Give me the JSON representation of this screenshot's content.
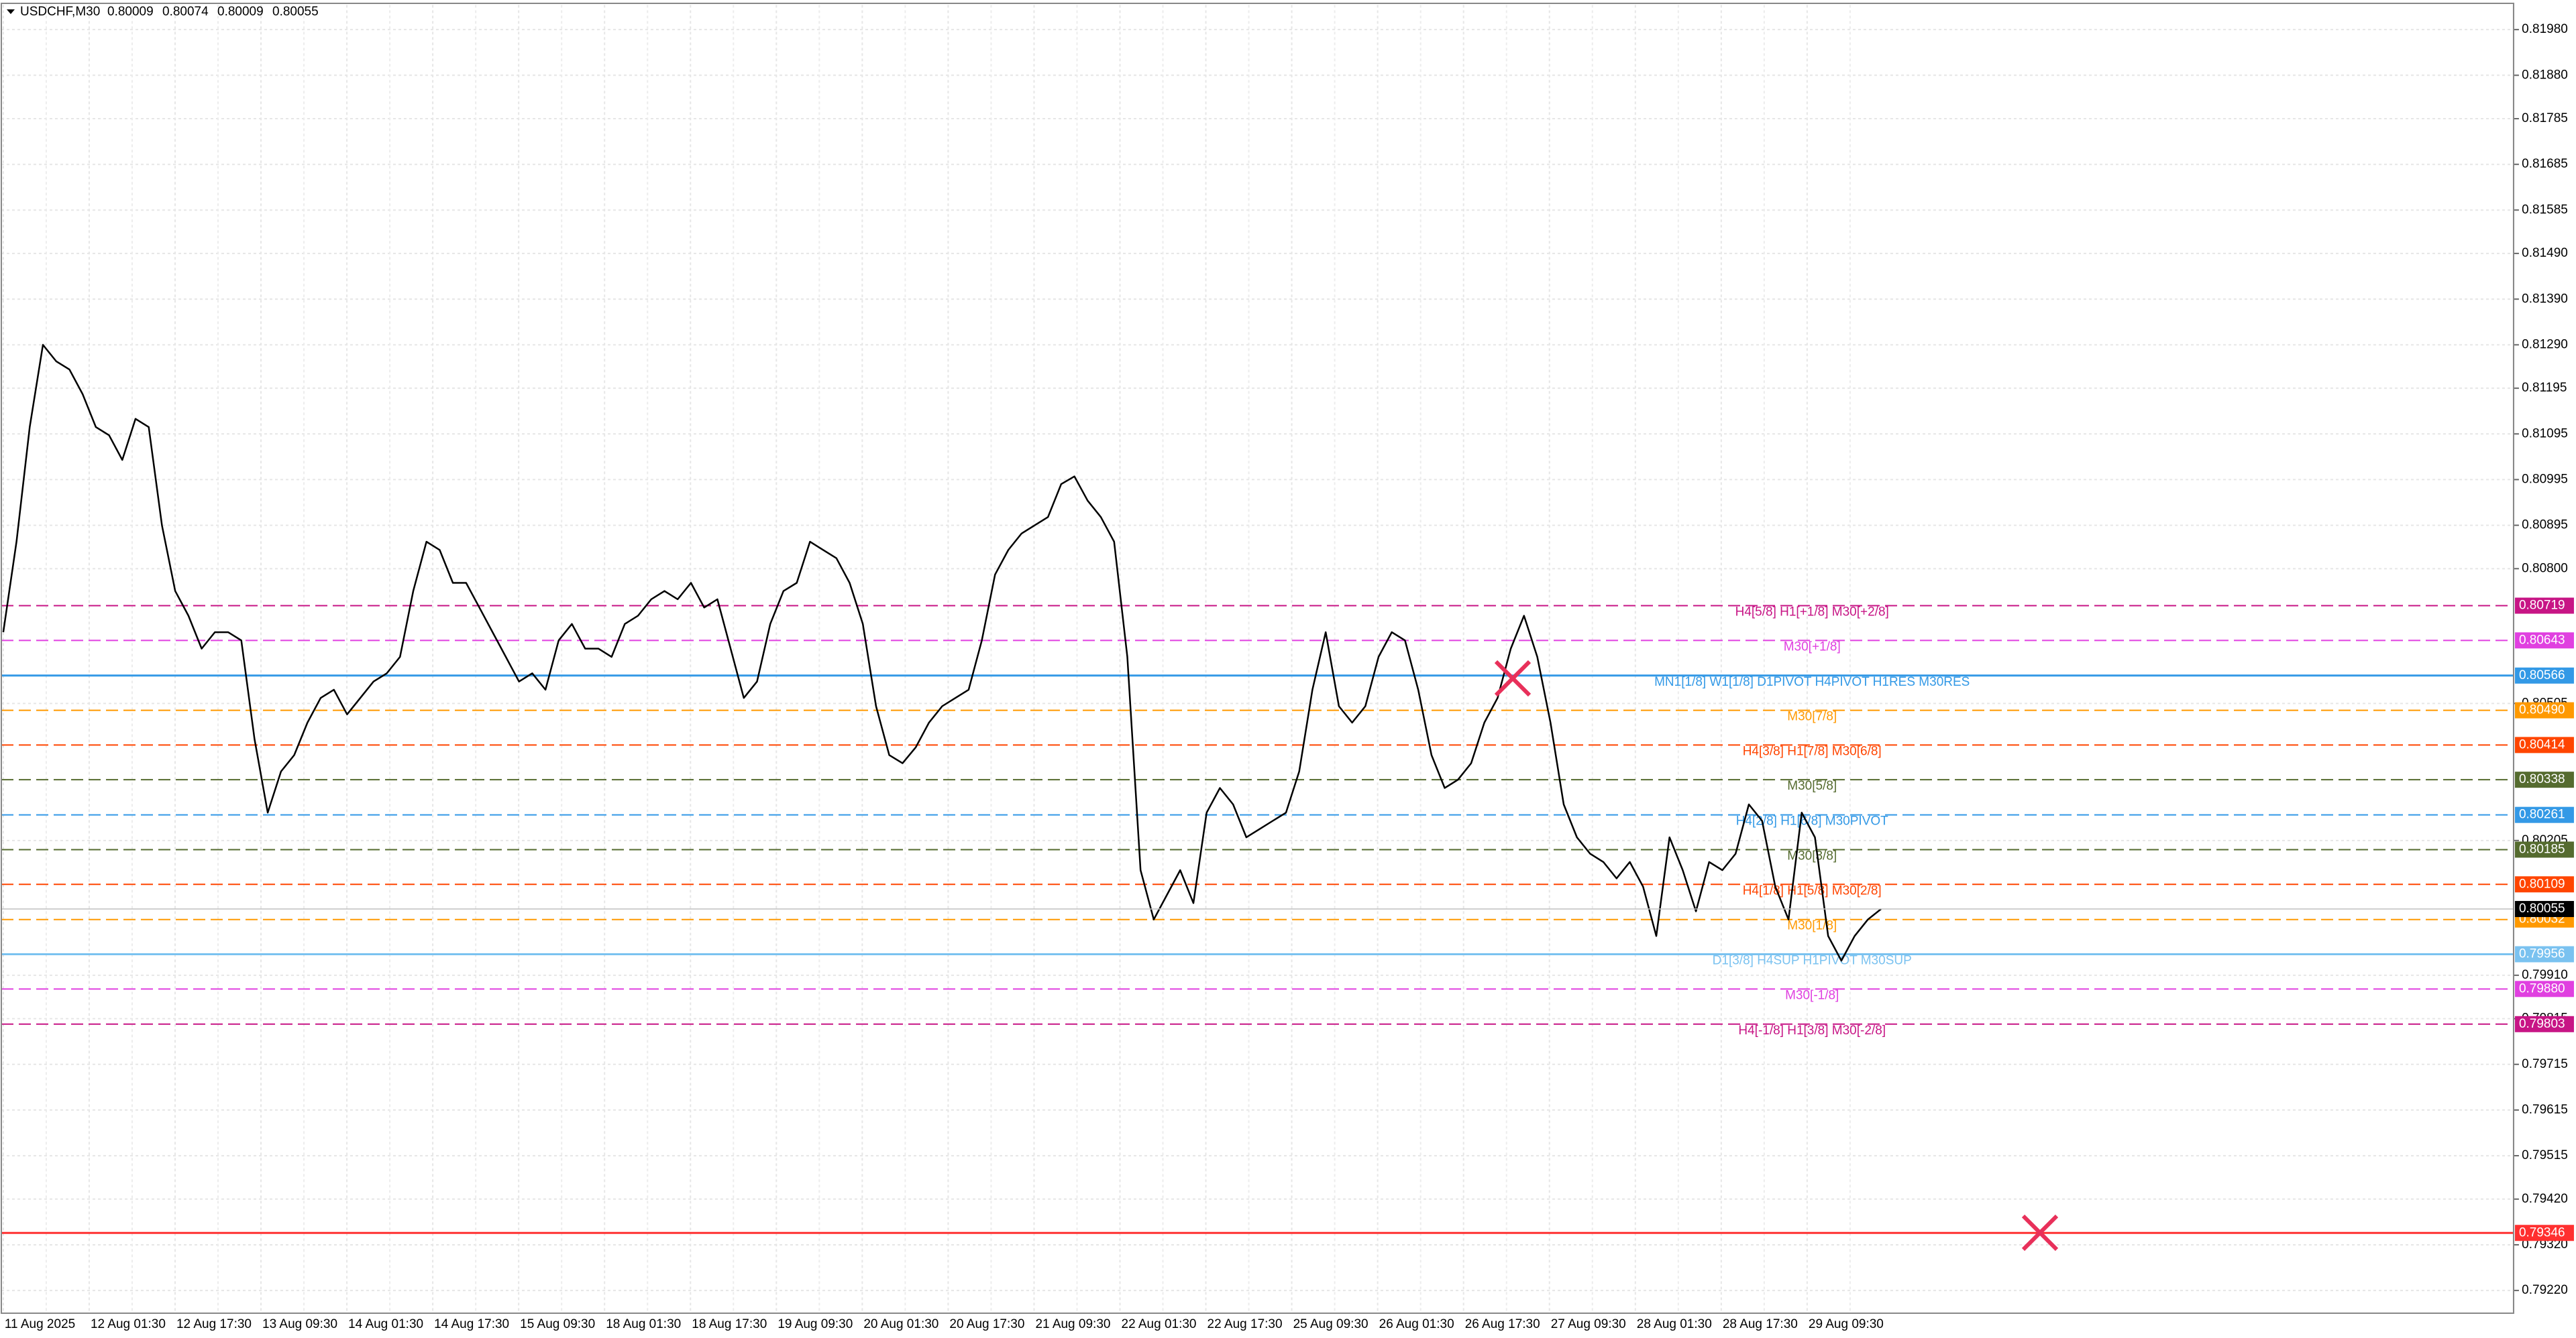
{
  "chart_data": {
    "type": "line",
    "symbol": "USDCHF,M30",
    "ohlc": [
      0.80009,
      0.80074,
      0.80009,
      0.80055
    ],
    "line_color": "#000000",
    "grid": true,
    "ylim": [
      0.7917,
      0.82034
    ],
    "yticks": [
      {
        "value": 0.8198,
        "label": "0.81980"
      },
      {
        "value": 0.8188,
        "label": "0.81880"
      },
      {
        "value": 0.81785,
        "label": "0.81785"
      },
      {
        "value": 0.81685,
        "label": "0.81685"
      },
      {
        "value": 0.81585,
        "label": "0.81585"
      },
      {
        "value": 0.8149,
        "label": "0.81490"
      },
      {
        "value": 0.8139,
        "label": "0.81390"
      },
      {
        "value": 0.8129,
        "label": "0.81290"
      },
      {
        "value": 0.81195,
        "label": "0.81195"
      },
      {
        "value": 0.81095,
        "label": "0.81095"
      },
      {
        "value": 0.80995,
        "label": "0.80995"
      },
      {
        "value": 0.80895,
        "label": "0.80895"
      },
      {
        "value": 0.808,
        "label": "0.80800"
      },
      {
        "value": 0.80505,
        "label": "0.80505"
      },
      {
        "value": 0.80205,
        "label": "0.80205"
      },
      {
        "value": 0.7991,
        "label": "0.79910"
      },
      {
        "value": 0.79815,
        "label": "0.79815"
      },
      {
        "value": 0.79715,
        "label": "0.79715"
      },
      {
        "value": 0.79615,
        "label": "0.79615"
      },
      {
        "value": 0.79515,
        "label": "0.79515"
      },
      {
        "value": 0.7942,
        "label": "0.79420"
      },
      {
        "value": 0.7932,
        "label": "0.79320"
      },
      {
        "value": 0.7922,
        "label": "0.79220"
      }
    ],
    "xtick_labels": [
      "11 Aug 2025",
      "12 Aug 01:30",
      "12 Aug 17:30",
      "13 Aug 09:30",
      "14 Aug 01:30",
      "14 Aug 17:30",
      "15 Aug 09:30",
      "18 Aug 01:30",
      "18 Aug 17:30",
      "19 Aug 09:30",
      "20 Aug 01:30",
      "20 Aug 17:30",
      "21 Aug 09:30",
      "22 Aug 01:30",
      "22 Aug 17:30",
      "25 Aug 09:30",
      "26 Aug 01:30",
      "26 Aug 17:30",
      "27 Aug 09:30",
      "28 Aug 01:30",
      "28 Aug 17:30",
      "29 Aug 09:30"
    ],
    "values": [
      0.80661,
      0.80859,
      0.8111,
      0.8129,
      0.81254,
      0.81236,
      0.81182,
      0.8111,
      0.81092,
      0.81038,
      0.81128,
      0.8111,
      0.80895,
      0.80751,
      0.80697,
      0.80625,
      0.80661,
      0.80661,
      0.80643,
      0.80427,
      0.80266,
      0.80356,
      0.80392,
      0.80463,
      0.80517,
      0.80535,
      0.80481,
      0.80517,
      0.80553,
      0.80571,
      0.80607,
      0.80751,
      0.80859,
      0.80841,
      0.80769,
      0.80769,
      0.80715,
      0.80661,
      0.80607,
      0.80553,
      0.80571,
      0.80535,
      0.80643,
      0.80679,
      0.80625,
      0.80625,
      0.80607,
      0.80679,
      0.80697,
      0.80733,
      0.80751,
      0.80733,
      0.80769,
      0.80715,
      0.80733,
      0.80625,
      0.80517,
      0.80553,
      0.80679,
      0.80751,
      0.80769,
      0.80859,
      0.80841,
      0.80823,
      0.80769,
      0.80679,
      0.80499,
      0.80392,
      0.80374,
      0.80409,
      0.80463,
      0.80499,
      0.80517,
      0.80535,
      0.80643,
      0.80787,
      0.80841,
      0.80877,
      0.80895,
      0.80913,
      0.80985,
      0.81002,
      0.80949,
      0.80913,
      0.80859,
      0.80607,
      0.8014,
      0.80032,
      0.80086,
      0.8014,
      0.80068,
      0.80266,
      0.8032,
      0.80284,
      0.80212,
      0.8023,
      0.80248,
      0.80266,
      0.80356,
      0.80535,
      0.80661,
      0.80499,
      0.80463,
      0.80499,
      0.80607,
      0.80661,
      0.80643,
      0.80535,
      0.80392,
      0.8032,
      0.80338,
      0.80374,
      0.80463,
      0.80517,
      0.80625,
      0.80697,
      0.80607,
      0.80463,
      0.80284,
      0.80212,
      0.80176,
      0.80158,
      0.80122,
      0.80158,
      0.80104,
      0.79996,
      0.80212,
      0.8014,
      0.8005,
      0.80158,
      0.8014,
      0.80176,
      0.80284,
      0.80248,
      0.80104,
      0.80032,
      0.80266,
      0.80212,
      0.79996,
      0.79942,
      0.79996,
      0.80032,
      0.80055
    ],
    "current_price": 0.80055,
    "levels": [
      {
        "price": 0.80719,
        "label": "H4[5/8] H1[+1/8] M30[+2/8]",
        "color": "#c71585",
        "style": "dashed"
      },
      {
        "price": 0.80643,
        "label": "M30[+1/8]",
        "color": "#e040e0",
        "style": "dashed"
      },
      {
        "price": 0.80566,
        "label": "MN1[1/8] W1[1/8] D1PIVOT H4PIVOT H1RES M30RES",
        "color": "#3399e6",
        "style": "solid"
      },
      {
        "price": 0.8049,
        "price_label": "0.80490",
        "label": "M30[7/8]",
        "color": "#ff9900",
        "style": "dashed"
      },
      {
        "price": 0.80414,
        "label": "H4[3/8] H1[7/8] M30[6/8]",
        "color": "#ff4500",
        "style": "dashed"
      },
      {
        "price": 0.80338,
        "label": "M30[5/8]",
        "color": "#556b2f",
        "style": "dashed"
      },
      {
        "price": 0.80261,
        "label": "H4[2/8] H1[6/8] M30PIVOT",
        "color": "#3399e6",
        "style": "dashed"
      },
      {
        "price": 0.80185,
        "label": "M30[3/8]",
        "color": "#556b2f",
        "style": "dashed"
      },
      {
        "price": 0.80109,
        "label": "H4[1/8] H1[5/8] M30[2/8]",
        "color": "#ff4500",
        "style": "dashed"
      },
      {
        "price": 0.80032,
        "label": "M30[1/8]",
        "color": "#ff9900",
        "style": "dashed"
      },
      {
        "price": 0.79956,
        "label": "D1[3/8] H4SUP H1PIVOT M30SUP",
        "color": "#7ac2f0",
        "style": "solid"
      },
      {
        "price": 0.7988,
        "price_label": "0.79880",
        "label": "M30[-1/8]",
        "color": "#e040e0",
        "style": "dashed"
      },
      {
        "price": 0.79803,
        "label": "H4[-1/8] H1[3/8] M30[-2/8]",
        "color": "#c71585",
        "style": "dashed"
      },
      {
        "price": 0.79346,
        "color": "#ff3030",
        "style": "solid"
      }
    ]
  }
}
